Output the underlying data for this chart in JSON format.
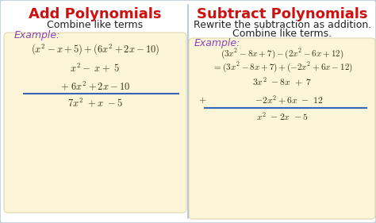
{
  "bg_color": "#dce8f0",
  "panel_bg": "#ffffff",
  "box_bg": "#fdf5d8",
  "divider_color": "#aac4d8",
  "title_left": "Add Polynomials",
  "title_right": "Subtract Polynomials",
  "title_color": "#cc1111",
  "subtitle_left": "Combine like terms",
  "subtitle_right_1": "Rewrite the subtraction as addition.",
  "subtitle_right_2": "Combine like terms.",
  "subtitle_color": "#222222",
  "example_label": "Example:",
  "example_color": "#8844bb",
  "math_color": "#333311",
  "underline_color": "#3366bb",
  "font_size_title": 13,
  "font_size_sub": 9,
  "font_size_example": 9,
  "font_size_math_lg": 9,
  "font_size_math_sm": 8
}
